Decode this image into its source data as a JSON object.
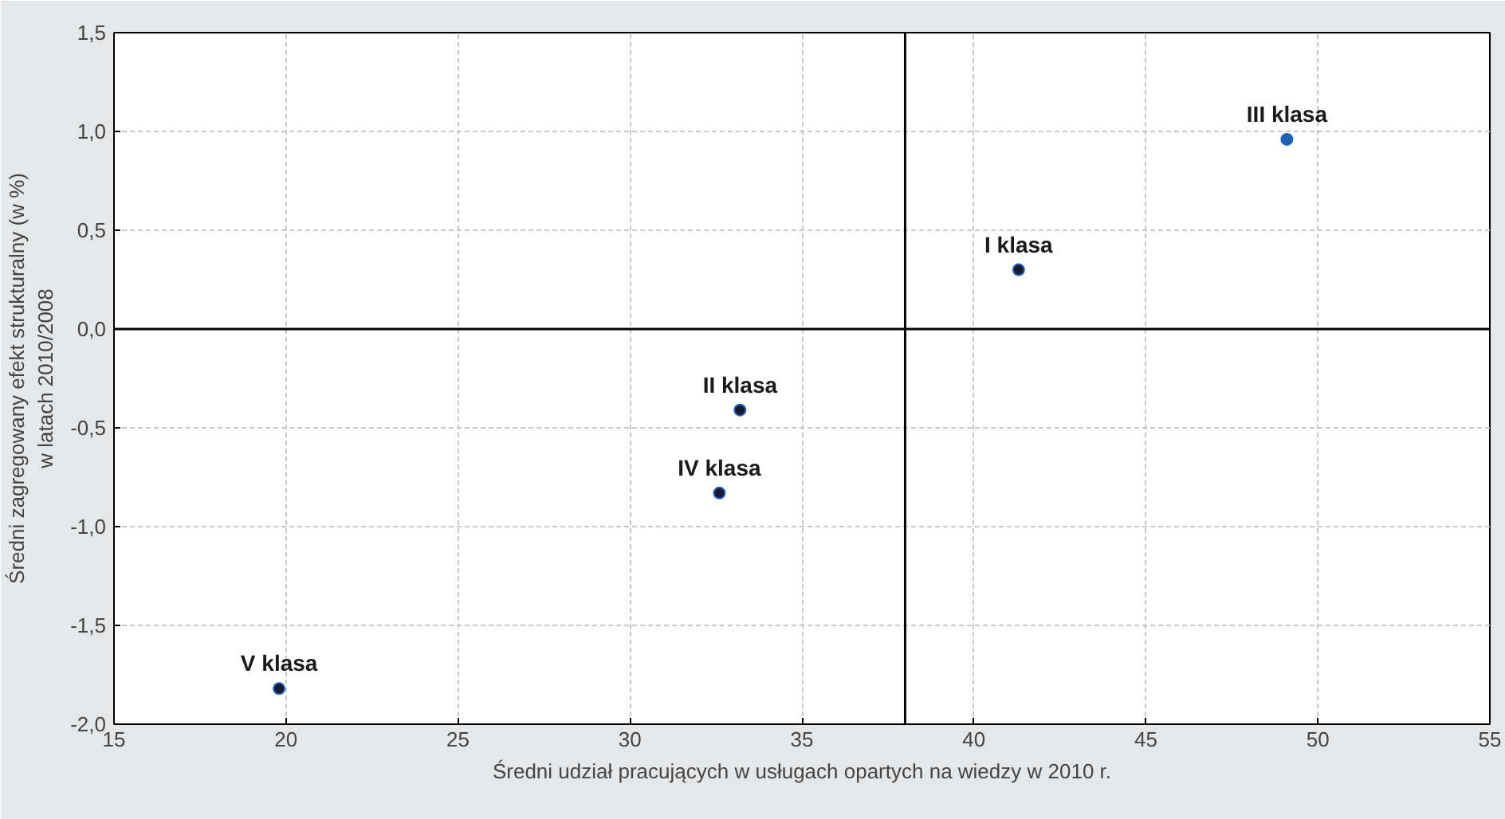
{
  "chart_data": {
    "type": "scatter",
    "xlabel": "Średni udział pracujących w usługach opartych na wiedzy w 2010 r.",
    "ylabel": "Średni zagregowany efekt strukturalny (w %)\nw latach 2010/2008",
    "series": [
      {
        "name": "I klasa",
        "color": "#1a1a2e",
        "x": [
          41.3
        ],
        "values": [
          0.3
        ]
      },
      {
        "name": "II klasa",
        "color": "#1a1a2e",
        "x": [
          33.2
        ],
        "values": [
          -0.41
        ]
      },
      {
        "name": "III klasa",
        "color": "#1f5fb4",
        "x": [
          49.1
        ],
        "values": [
          0.96
        ]
      },
      {
        "name": "IV klasa",
        "color": "#1a1a2e",
        "x": [
          32.6
        ],
        "values": [
          -0.83
        ]
      },
      {
        "name": "V klasa",
        "color": "#1a1a2e",
        "x": [
          19.8
        ],
        "values": [
          -1.82
        ]
      }
    ],
    "xlim": [
      15,
      55
    ],
    "xticks": [
      15,
      20,
      25,
      30,
      35,
      40,
      45,
      50,
      55
    ],
    "ylim": [
      -2.0,
      1.5
    ],
    "yticks": [
      {
        "value": -2.0,
        "label": "-2,0"
      },
      {
        "value": -1.5,
        "label": "-1,5"
      },
      {
        "value": -1.0,
        "label": "-1,0"
      },
      {
        "value": -0.5,
        "label": "-0,5"
      },
      {
        "value": 0.0,
        "label": "0,0"
      },
      {
        "value": 0.5,
        "label": "0,5"
      },
      {
        "value": 1.0,
        "label": "1,0"
      },
      {
        "value": 1.5,
        "label": "1,5"
      }
    ],
    "ref_lines": [
      {
        "axis": "x",
        "value": 38,
        "color": "#000000"
      },
      {
        "axis": "y",
        "value": 0,
        "color": "#000000"
      }
    ],
    "grid": true,
    "marker": "circle"
  }
}
